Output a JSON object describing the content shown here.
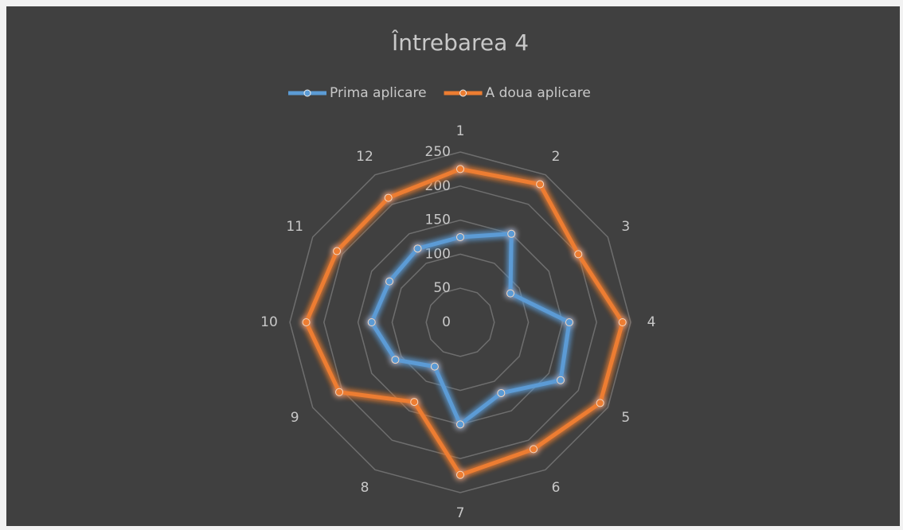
{
  "chart_data": {
    "type": "radar",
    "title": "Întrebarea 4",
    "categories": [
      "1",
      "2",
      "3",
      "4",
      "5",
      "6",
      "7",
      "8",
      "9",
      "10",
      "11",
      "12"
    ],
    "series": [
      {
        "name": "Prima aplicare",
        "color": "#5b9bd5",
        "values": [
          125,
          150,
          85,
          160,
          170,
          120,
          150,
          75,
          110,
          130,
          120,
          125
        ]
      },
      {
        "name": "A doua aplicare",
        "color": "#ed7d31",
        "values": [
          225,
          234,
          200,
          238,
          237,
          215,
          224,
          135,
          205,
          226,
          209,
          211
        ]
      }
    ],
    "rlim": [
      0,
      250
    ],
    "rticks": [
      0,
      50,
      100,
      150,
      200,
      250
    ],
    "grid": true,
    "legend": "top"
  }
}
